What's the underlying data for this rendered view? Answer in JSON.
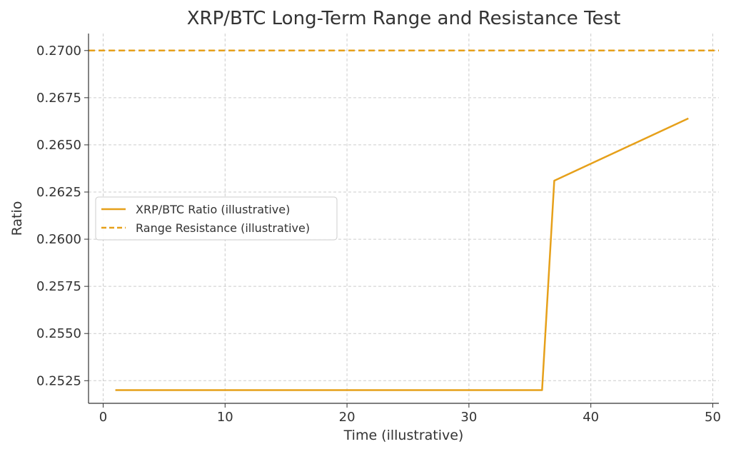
{
  "chart_data": {
    "type": "line",
    "title": "XRP/BTC Long-Term Range and Resistance Test",
    "xlabel": "Time (illustrative)",
    "ylabel": "Ratio",
    "xlim": [
      -1.2,
      50.5
    ],
    "ylim": [
      0.2513,
      0.2709
    ],
    "xticks": [
      0,
      10,
      20,
      30,
      40,
      50
    ],
    "yticks": [
      0.2525,
      0.255,
      0.2575,
      0.26,
      0.2625,
      0.265,
      0.2675,
      0.27
    ],
    "ytick_labels": [
      "0.2525",
      "0.2550",
      "0.2575",
      "0.2600",
      "0.2625",
      "0.2650",
      "0.2675",
      "0.2700"
    ],
    "xtick_labels": [
      "0",
      "10",
      "20",
      "30",
      "40",
      "50"
    ],
    "grid": true,
    "legend": {
      "placement": "center-left"
    },
    "series": [
      {
        "name": "XRP/BTC Ratio (illustrative)",
        "style": "solid",
        "color": "#E6A01A",
        "x": [
          1,
          36,
          37,
          48
        ],
        "y": [
          0.252,
          0.252,
          0.2631,
          0.2664
        ]
      },
      {
        "name": "Range Resistance (illustrative)",
        "style": "dashed",
        "color": "#E6A01A",
        "type": "hline",
        "y": 0.27
      }
    ]
  }
}
